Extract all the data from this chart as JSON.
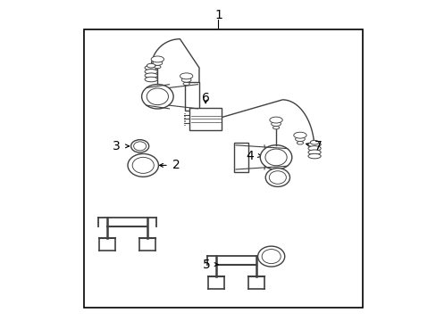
{
  "bg_color": "#ffffff",
  "border_color": "#000000",
  "line_color": "#404040",
  "text_color": "#000000",
  "label_fontsize": 10,
  "figsize": [
    4.89,
    3.6
  ],
  "dpi": 100,
  "border": [
    0.08,
    0.04,
    0.87,
    0.87
  ]
}
